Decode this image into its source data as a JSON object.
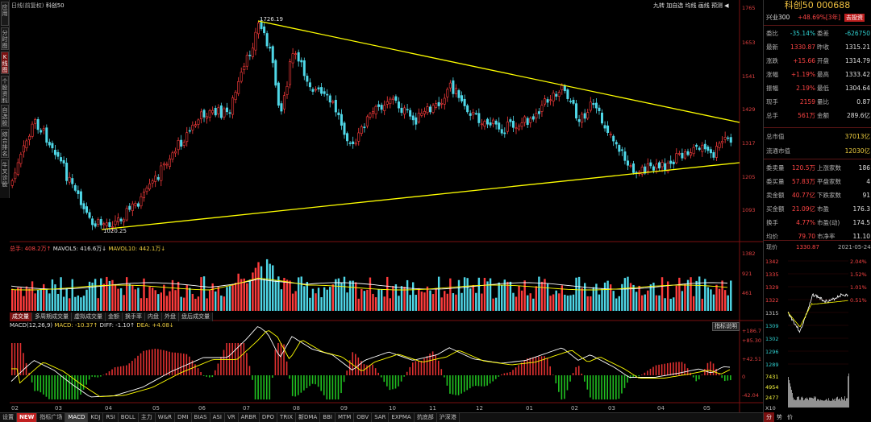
{
  "left_tabs": [
    "应用",
    "分时图",
    "K线图",
    "个股资料",
    "自选股",
    "综合排名",
    "牛叉诊股"
  ],
  "main_header": {
    "period": "日线(前复权)",
    "name": "科创50"
  },
  "top_right_buttons": [
    "九转",
    "加自选",
    "均线",
    "画线",
    "预测"
  ],
  "price_annotations": {
    "high": "1726.19",
    "low": "1020.25"
  },
  "price_axis": [
    "1765",
    "1653",
    "1541",
    "1429",
    "1317",
    "1205",
    "1093"
  ],
  "volume_header": {
    "vol": "总手: 408.2万↑",
    "ma5": "MAVOL5: 416.6万↓",
    "ma10": "MAVOL10: 442.1万↓"
  },
  "volume_axis": [
    "1382",
    "921",
    "461"
  ],
  "volume_subtabs": [
    "成交量",
    "多周期成交量",
    "虚拟成交量",
    "金额",
    "换手率",
    "内盘",
    "外盘",
    "盘后成交量"
  ],
  "macd_header": {
    "name": "MACD(12,26,9)",
    "macd": "MACD: -10.37↑",
    "diff": "DIFF: -1.10↑",
    "dea": "DEA: +4.08↓"
  },
  "macd_button": "指标说明",
  "macd_axis": [
    "+186.7",
    "+85.30",
    "+42.51",
    "0",
    "-42.04"
  ],
  "x_months": [
    "02",
    "03",
    "04",
    "05",
    "06",
    "07",
    "08",
    "09",
    "10",
    "11",
    "12",
    "01",
    "02",
    "03",
    "04",
    "05"
  ],
  "bottom_tabs": [
    "设置",
    "NEW",
    "指标广场",
    "MACD",
    "KDJ",
    "RSI",
    "BOLL",
    "主力",
    "W&R",
    "DMI",
    "BIAS",
    "ASI",
    "VR",
    "ARBR",
    "DPO",
    "TRIX",
    "新DMA",
    "BBI",
    "MTM",
    "OBV",
    "SAR",
    "EXPMA",
    "抗底部",
    "沪深港"
  ],
  "panel": {
    "title": "科创50 000688",
    "sector_label": "兴业300",
    "sector_value": "+48.69%[3年]",
    "sector_button": "去投资",
    "rows": [
      {
        "l1": "委比",
        "v1": "-35.14%",
        "l2": "委差",
        "v2": "-626750"
      },
      {
        "l1": "最新",
        "v1": "1330.87",
        "l2": "昨收",
        "v2": "1315.21"
      },
      {
        "l1": "涨跌",
        "v1": "+15.66",
        "l2": "开盘",
        "v2": "1314.79"
      },
      {
        "l1": "涨幅",
        "v1": "+1.19%",
        "l2": "最高",
        "v2": "1333.42"
      },
      {
        "l1": "振幅",
        "v1": "2.19%",
        "l2": "最低",
        "v2": "1304.64"
      },
      {
        "l1": "现手",
        "v1": "2159",
        "l2": "量比",
        "v2": "0.87"
      },
      {
        "l1": "总手",
        "v1": "561万",
        "l2": "金额",
        "v2": "289.6亿"
      }
    ],
    "total_mv_label": "总市值",
    "total_mv": "37013亿",
    "float_mv_label": "流通市值",
    "float_mv": "12030亿",
    "rows2": [
      {
        "l1": "委卖量",
        "v1": "120.5万",
        "l2": "上涨家数",
        "v2": "186"
      },
      {
        "l1": "委买量",
        "v1": "57.83万",
        "l2": "平盘家数",
        "v2": "4"
      },
      {
        "l1": "卖金额",
        "v1": "40.77亿",
        "l2": "下跌家数",
        "v2": "91"
      },
      {
        "l1": "买金额",
        "v1": "21.09亿",
        "l2": "市盈",
        "v2": "176.3"
      },
      {
        "l1": "换手",
        "v1": "4.77%",
        "l2": "市盈(动)",
        "v2": "174.5"
      },
      {
        "l1": "均价",
        "v1": "79.70",
        "l2": "市净率",
        "v2": "11.10"
      }
    ],
    "mini_label": "现价",
    "mini_price": "1330.87",
    "mini_date": "2021-05-24",
    "mini_left_axis": [
      "1342",
      "1335",
      "1329",
      "1322",
      "1315",
      "1309",
      "1302",
      "1296",
      "1289"
    ],
    "mini_right_axis": [
      "2.04%",
      "1.52%",
      "1.01%",
      "0.51%"
    ],
    "mini_vol_axis": [
      "7431",
      "4954",
      "2477",
      "X10"
    ],
    "mini_tabs": [
      "分",
      "势",
      "价"
    ]
  },
  "colors": {
    "up": "#ff3c3c",
    "down": "#4fd8e8",
    "trend": "#ffff00",
    "bg": "#000000"
  }
}
